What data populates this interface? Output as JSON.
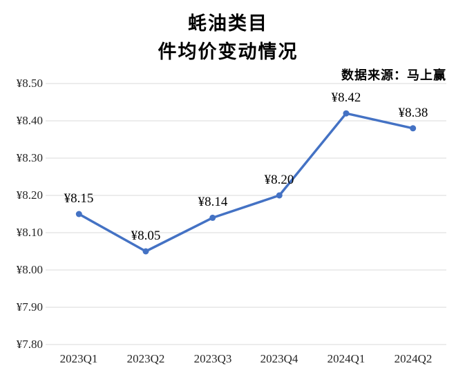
{
  "title": {
    "line1": "蚝油类目",
    "line2": "件均价变动情况"
  },
  "source": "数据来源：马上赢",
  "chart_data": {
    "type": "line",
    "title": "蚝油类目 件均价变动情况",
    "subtitle": "数据来源：马上赢",
    "categories": [
      "2023Q1",
      "2023Q2",
      "2023Q3",
      "2023Q4",
      "2024Q1",
      "2024Q2"
    ],
    "series": [
      {
        "name": "件均价",
        "values": [
          8.15,
          8.05,
          8.14,
          8.2,
          8.42,
          8.38
        ],
        "data_labels": [
          "¥8.15",
          "¥8.05",
          "¥8.14",
          "¥8.20",
          "¥8.42",
          "¥8.38"
        ]
      }
    ],
    "xlabel": "",
    "ylabel": "",
    "ylim": [
      7.8,
      8.5
    ],
    "y_tick_labels": [
      "¥8.50",
      "¥8.40",
      "¥8.30",
      "¥8.20",
      "¥8.10",
      "¥8.00",
      "¥7.90",
      "¥7.80"
    ],
    "y_tick_values": [
      8.5,
      8.4,
      8.3,
      8.2,
      8.1,
      8.0,
      7.9,
      7.8
    ],
    "grid": true,
    "legend": "none",
    "colors": {
      "line": "#4472C4",
      "marker": "#4472C4",
      "gridline": "#D9D9D9",
      "text": "#000000",
      "background": "#FFFFFF"
    }
  }
}
